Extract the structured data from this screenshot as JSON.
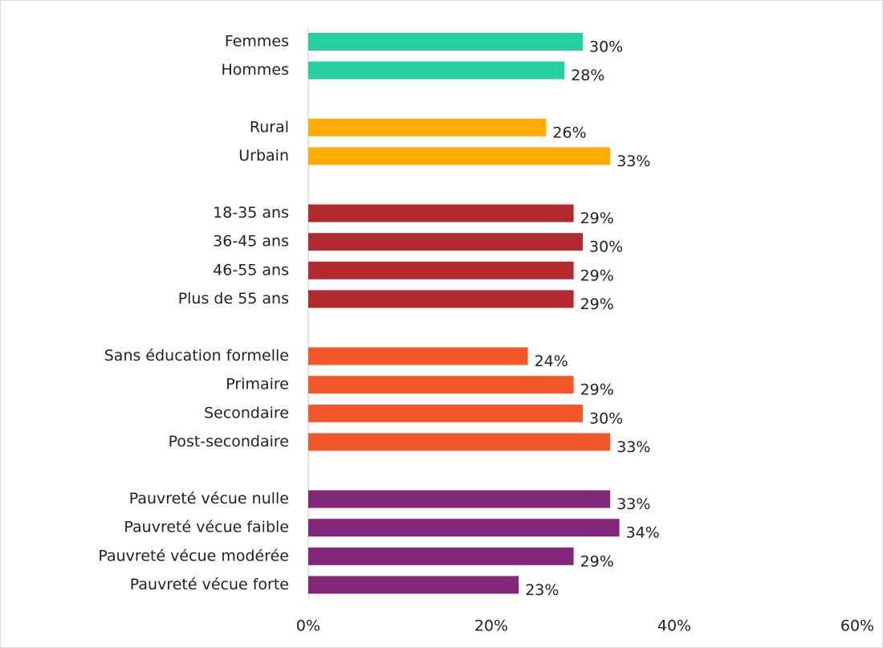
{
  "chart_data": {
    "type": "bar",
    "orientation": "horizontal",
    "categories": [
      "Femmes",
      "Hommes",
      null,
      "Rural",
      "Urbain",
      null,
      "18-35 ans",
      "36-45 ans",
      "46-55 ans",
      "Plus de 55 ans",
      null,
      "Sans éducation formelle",
      "Primaire",
      "Secondaire",
      "Post-secondaire",
      null,
      "Pauvreté vécue nulle",
      "Pauvreté vécue faible",
      "Pauvreté vécue modérée",
      "Pauvreté vécue forte"
    ],
    "values": [
      30,
      28,
      null,
      26,
      33,
      null,
      29,
      30,
      29,
      29,
      null,
      24,
      29,
      30,
      33,
      null,
      33,
      34,
      29,
      23
    ],
    "value_labels": [
      "30%",
      "28%",
      null,
      "26%",
      "33%",
      null,
      "29%",
      "30%",
      "29%",
      "29%",
      null,
      "24%",
      "29%",
      "30%",
      "33%",
      null,
      "33%",
      "34%",
      "29%",
      "23%"
    ],
    "colors": [
      "#24d0a0",
      "#24d0a0",
      null,
      "#ffab00",
      "#ffab00",
      null,
      "#b2292e",
      "#b2292e",
      "#b2292e",
      "#b2292e",
      null,
      "#f4572b",
      "#f4572b",
      "#f4572b",
      "#f4572b",
      null,
      "#82267a",
      "#82267a",
      "#82267a",
      "#82267a"
    ],
    "xlim": [
      0,
      60
    ],
    "xticks": [
      {
        "value": 0,
        "label": "0%"
      },
      {
        "value": 20,
        "label": "20%"
      },
      {
        "value": 40,
        "label": "40%"
      },
      {
        "value": 60,
        "label": "60%"
      }
    ],
    "grid": false
  }
}
